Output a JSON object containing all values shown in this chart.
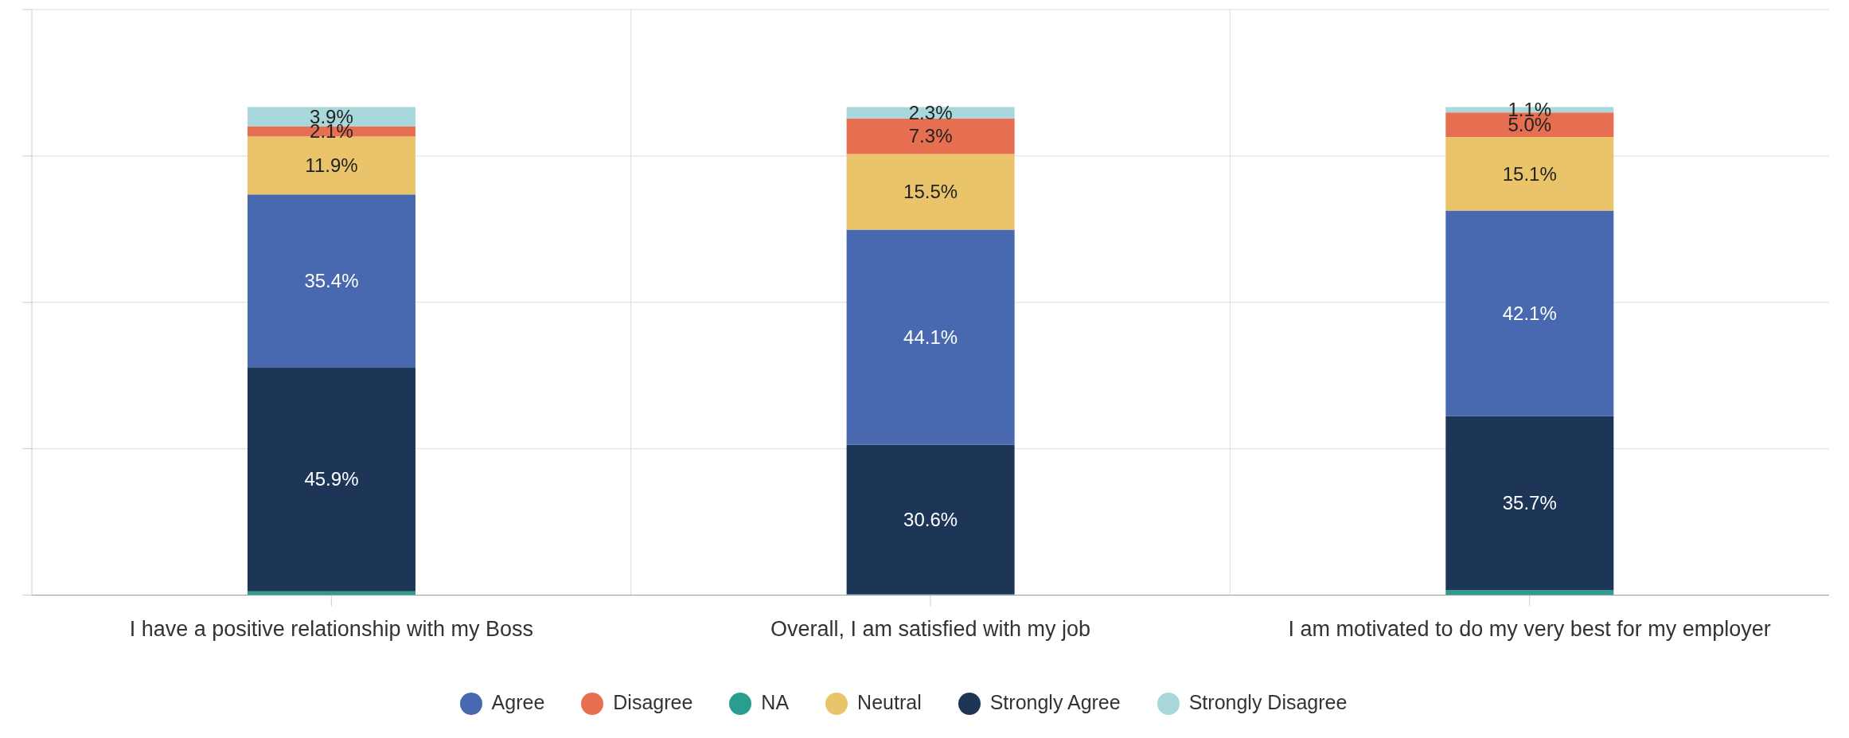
{
  "chart_data": {
    "type": "bar",
    "stacked": true,
    "categories": [
      "I have a positive relationship with my Boss",
      "Overall, I am satisfied with my job",
      "I am motivated to do my very best for my employer"
    ],
    "series": [
      {
        "name": "NA",
        "color": "#2a9d8f",
        "values": [
          0.8,
          0.2,
          1.0
        ],
        "value_labels": [
          null,
          null,
          null
        ]
      },
      {
        "name": "Strongly Agree",
        "color": "#1d3557",
        "values": [
          45.9,
          30.6,
          35.7
        ],
        "value_labels": [
          "45.9%",
          "30.6%",
          "35.7%"
        ]
      },
      {
        "name": "Agree",
        "color": "#4869b0",
        "values": [
          35.4,
          44.1,
          42.1
        ],
        "value_labels": [
          "35.4%",
          "44.1%",
          "42.1%"
        ]
      },
      {
        "name": "Neutral",
        "color": "#e9c46a",
        "values": [
          11.9,
          15.5,
          15.1
        ],
        "value_labels": [
          "11.9%",
          "15.5%",
          "15.1%"
        ]
      },
      {
        "name": "Disagree",
        "color": "#e76f51",
        "values": [
          2.1,
          7.3,
          5.0
        ],
        "value_labels": [
          "2.1%",
          "7.3%",
          "5.0%"
        ]
      },
      {
        "name": "Strongly Disagree",
        "color": "#a8d8dc",
        "values": [
          3.9,
          2.3,
          1.1
        ],
        "value_labels": [
          "3.9%",
          "2.3%",
          "1.1%"
        ]
      }
    ],
    "ylim": [
      0,
      120
    ],
    "yticks": [
      {
        "value": 0,
        "label": null
      },
      {
        "value": 30,
        "label": null
      },
      {
        "value": 60,
        "label": null
      },
      {
        "value": 90,
        "label": null
      },
      {
        "value": 120,
        "label": null
      }
    ],
    "tick_labels": "x",
    "grid": true,
    "legend": "bottom"
  }
}
